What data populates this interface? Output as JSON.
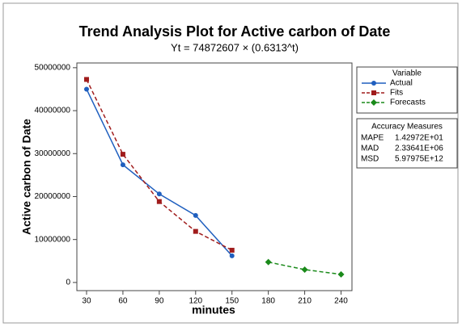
{
  "chart_data": {
    "type": "line",
    "title": "Trend Analysis Plot for Active carbon of Date",
    "subtitle": "Yt = 74872607 × (0.6313^t)",
    "x_label": "minutes",
    "y_label": "Active carbon of Date",
    "xlim": [
      22,
      249
    ],
    "xticks": [
      30,
      60,
      90,
      120,
      150,
      180,
      210,
      240
    ],
    "ylim": [
      -1900000,
      51100000
    ],
    "yticks": [
      0,
      10000000,
      20000000,
      30000000,
      40000000,
      50000000
    ],
    "legend_title": "Variable",
    "series": [
      {
        "name": "Actual",
        "color": "#1f5fbf",
        "linestyle": "solid",
        "marker": "circle",
        "x": [
          30,
          60,
          90,
          120,
          150
        ],
        "values": [
          45000000,
          27400000,
          20600000,
          15600000,
          6200000
        ]
      },
      {
        "name": "Fits",
        "color": "#a01c1c",
        "linestyle": "dashed",
        "marker": "square",
        "x": [
          30,
          60,
          90,
          120,
          150
        ],
        "values": [
          47267000,
          29840000,
          18838000,
          11892000,
          7508000
        ]
      },
      {
        "name": "Forecasts",
        "color": "#1a8a1a",
        "linestyle": "dashed",
        "marker": "diamond",
        "x": [
          180,
          210,
          240
        ],
        "values": [
          4740000,
          2992000,
          1889000
        ]
      }
    ],
    "accuracy_measures": {
      "title": "Accuracy Measures",
      "rows": [
        [
          "MAPE",
          "1.42972E+01"
        ],
        [
          "MAD",
          "2.33641E+06"
        ],
        [
          "MSD",
          "5.97975E+12"
        ]
      ]
    }
  }
}
